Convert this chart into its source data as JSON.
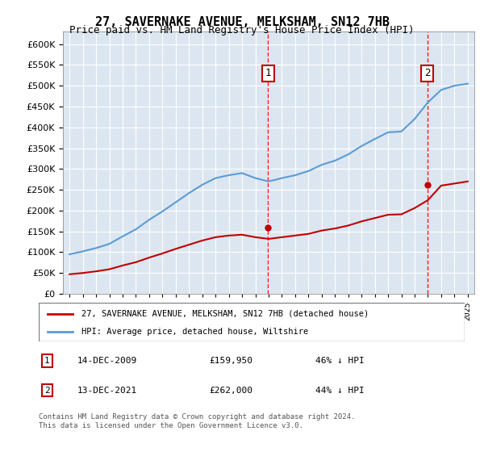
{
  "title": "27, SAVERNAKE AVENUE, MELKSHAM, SN12 7HB",
  "subtitle": "Price paid vs. HM Land Registry's House Price Index (HPI)",
  "legend_line1": "27, SAVERNAKE AVENUE, MELKSHAM, SN12 7HB (detached house)",
  "legend_line2": "HPI: Average price, detached house, Wiltshire",
  "footnote": "Contains HM Land Registry data © Crown copyright and database right 2024.\nThis data is licensed under the Open Government Licence v3.0.",
  "transaction1_date": "14-DEC-2009",
  "transaction1_price": 159950,
  "transaction1_label": "46% ↓ HPI",
  "transaction2_date": "13-DEC-2021",
  "transaction2_price": 262000,
  "transaction2_label": "44% ↓ HPI",
  "hpi_color": "#5b9bd5",
  "price_color": "#c00000",
  "marker_color_t1": "#c00000",
  "marker_color_t2": "#c00000",
  "vline_color": "#ff0000",
  "background_fill": "#dce6f1",
  "ylim": [
    0,
    630000
  ],
  "yticks": [
    0,
    50000,
    100000,
    150000,
    200000,
    250000,
    300000,
    350000,
    400000,
    450000,
    500000,
    550000,
    600000
  ],
  "xstart_year": 1995,
  "xend_year": 2025
}
